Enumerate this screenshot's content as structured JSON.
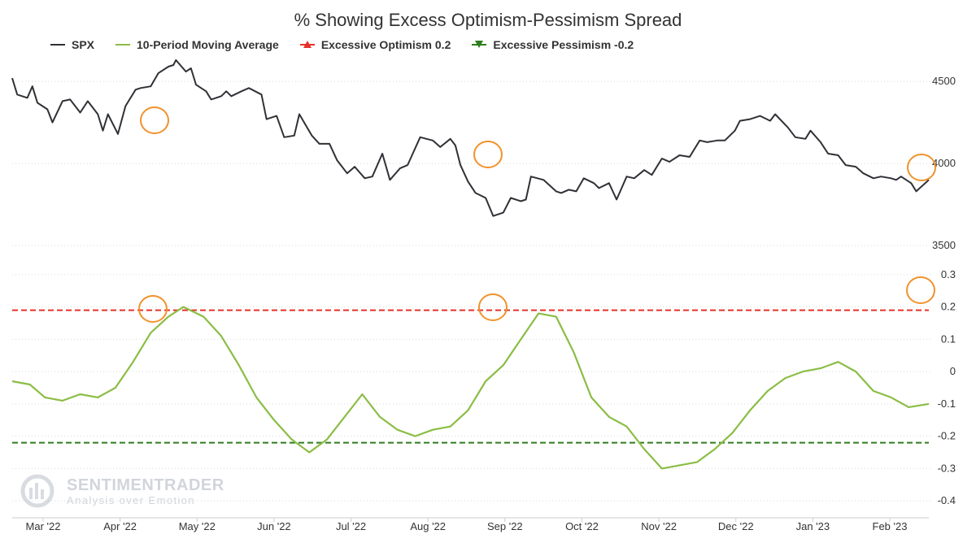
{
  "chart_data": {
    "type": "line",
    "title": "% Showing Excess Optimism-Pessimism Spread",
    "legend": [
      {
        "name": "SPX",
        "color": "#2f3136",
        "marker": "line"
      },
      {
        "name": "10-Period Moving Average",
        "color": "#8bbd45",
        "marker": "line"
      },
      {
        "name": "Excessive Optimism 0.2",
        "color": "#e6302a",
        "marker": "triangle-up"
      },
      {
        "name": "Excessive Pessimism -0.2",
        "color": "#2e7d1e",
        "marker": "triangle-down"
      }
    ],
    "legend_placement": "top-left",
    "x_labels": [
      "Mar '22",
      "Apr '22",
      "May '22",
      "Jun '22",
      "Jul '22",
      "Aug '22",
      "Sep '22",
      "Oct '22",
      "Nov '22",
      "Dec '22",
      "Jan '23",
      "Feb '23"
    ],
    "x_range": [
      "2022-02-22",
      "2023-02-21"
    ],
    "upper_panel": {
      "y_ticks": [
        4500,
        4000,
        3500
      ],
      "y_range": [
        3500,
        4600
      ],
      "series": [
        {
          "name": "SPX",
          "color": "#2f3136",
          "points": [
            [
              "2022-02-22",
              4520
            ],
            [
              "2022-02-24",
              4420
            ],
            [
              "2022-02-28",
              4400
            ],
            [
              "2022-03-02",
              4470
            ],
            [
              "2022-03-04",
              4370
            ],
            [
              "2022-03-08",
              4330
            ],
            [
              "2022-03-10",
              4250
            ],
            [
              "2022-03-14",
              4380
            ],
            [
              "2022-03-17",
              4390
            ],
            [
              "2022-03-21",
              4310
            ],
            [
              "2022-03-24",
              4380
            ],
            [
              "2022-03-28",
              4300
            ],
            [
              "2022-03-30",
              4200
            ],
            [
              "2022-04-01",
              4300
            ],
            [
              "2022-04-05",
              4180
            ],
            [
              "2022-04-08",
              4350
            ],
            [
              "2022-04-12",
              4450
            ],
            [
              "2022-04-14",
              4460
            ],
            [
              "2022-04-18",
              4470
            ],
            [
              "2022-04-21",
              4550
            ],
            [
              "2022-04-25",
              4590
            ],
            [
              "2022-04-27",
              4600
            ],
            [
              "2022-04-28",
              4630
            ],
            [
              "2022-05-02",
              4560
            ],
            [
              "2022-05-04",
              4580
            ],
            [
              "2022-05-06",
              4480
            ],
            [
              "2022-05-10",
              4440
            ],
            [
              "2022-05-12",
              4390
            ],
            [
              "2022-05-16",
              4410
            ],
            [
              "2022-05-18",
              4440
            ],
            [
              "2022-05-20",
              4410
            ],
            [
              "2022-05-24",
              4440
            ],
            [
              "2022-05-27",
              4460
            ],
            [
              "2022-06-01",
              4420
            ],
            [
              "2022-06-03",
              4270
            ],
            [
              "2022-06-07",
              4290
            ],
            [
              "2022-06-10",
              4160
            ],
            [
              "2022-06-14",
              4170
            ],
            [
              "2022-06-16",
              4300
            ],
            [
              "2022-06-21",
              4170
            ],
            [
              "2022-06-24",
              4120
            ],
            [
              "2022-06-28",
              4120
            ],
            [
              "2022-07-01",
              4020
            ],
            [
              "2022-07-05",
              3940
            ],
            [
              "2022-07-08",
              3980
            ],
            [
              "2022-07-12",
              3910
            ],
            [
              "2022-07-15",
              3920
            ],
            [
              "2022-07-19",
              4060
            ],
            [
              "2022-07-22",
              3900
            ],
            [
              "2022-07-26",
              3970
            ],
            [
              "2022-07-29",
              3990
            ],
            [
              "2022-08-03",
              4160
            ],
            [
              "2022-08-08",
              4140
            ],
            [
              "2022-08-11",
              4100
            ],
            [
              "2022-08-15",
              4150
            ],
            [
              "2022-08-17",
              4110
            ],
            [
              "2022-08-19",
              3990
            ],
            [
              "2022-08-22",
              3890
            ],
            [
              "2022-08-25",
              3820
            ],
            [
              "2022-08-29",
              3790
            ],
            [
              "2022-09-01",
              3680
            ],
            [
              "2022-09-05",
              3700
            ],
            [
              "2022-09-08",
              3790
            ],
            [
              "2022-09-12",
              3770
            ],
            [
              "2022-09-14",
              3780
            ],
            [
              "2022-09-16",
              3920
            ],
            [
              "2022-09-21",
              3900
            ],
            [
              "2022-09-26",
              3830
            ],
            [
              "2022-09-28",
              3820
            ],
            [
              "2022-10-01",
              3840
            ],
            [
              "2022-10-04",
              3830
            ],
            [
              "2022-10-07",
              3910
            ],
            [
              "2022-10-11",
              3880
            ],
            [
              "2022-10-13",
              3850
            ],
            [
              "2022-10-17",
              3880
            ],
            [
              "2022-10-20",
              3780
            ],
            [
              "2022-10-24",
              3920
            ],
            [
              "2022-10-27",
              3910
            ],
            [
              "2022-10-31",
              3960
            ],
            [
              "2022-11-03",
              3930
            ],
            [
              "2022-11-07",
              4030
            ],
            [
              "2022-11-10",
              4010
            ],
            [
              "2022-11-14",
              4050
            ],
            [
              "2022-11-18",
              4040
            ],
            [
              "2022-11-22",
              4140
            ],
            [
              "2022-11-25",
              4130
            ],
            [
              "2022-11-29",
              4140
            ],
            [
              "2022-12-02",
              4140
            ],
            [
              "2022-12-06",
              4200
            ],
            [
              "2022-12-08",
              4260
            ],
            [
              "2022-12-12",
              4270
            ],
            [
              "2022-12-14",
              4280
            ],
            [
              "2022-12-16",
              4290
            ],
            [
              "2022-12-20",
              4260
            ],
            [
              "2022-12-22",
              4300
            ],
            [
              "2022-12-27",
              4220
            ],
            [
              "2022-12-30",
              4160
            ],
            [
              "2023-01-03",
              4150
            ],
            [
              "2023-01-05",
              4200
            ],
            [
              "2023-01-09",
              4130
            ],
            [
              "2023-01-12",
              4060
            ],
            [
              "2023-01-16",
              4050
            ],
            [
              "2023-01-19",
              3990
            ],
            [
              "2023-01-23",
              3980
            ],
            [
              "2023-01-26",
              3940
            ],
            [
              "2023-01-30",
              3910
            ],
            [
              "2023-02-02",
              3920
            ],
            [
              "2023-02-06",
              3910
            ],
            [
              "2023-02-08",
              3900
            ],
            [
              "2023-02-10",
              3920
            ],
            [
              "2023-02-14",
              3880
            ],
            [
              "2023-02-16",
              3830
            ],
            [
              "2023-02-21",
              3900
            ]
          ]
        }
      ]
    },
    "lower_panel": {
      "y_ticks": [
        0.3,
        0.2,
        0.1,
        0,
        -0.1,
        -0.2,
        -0.3,
        -0.4
      ],
      "y_range": [
        -0.45,
        0.35
      ],
      "reference_lines": [
        {
          "name": "Excessive Optimism 0.2",
          "value": 0.19,
          "color": "#e6302a",
          "style": "dashed"
        },
        {
          "name": "Excessive Pessimism -0.2",
          "value": -0.22,
          "color": "#2e7d1e",
          "style": "dashed"
        }
      ],
      "series": [
        {
          "name": "10-Period Moving Average",
          "color": "#8bbd45",
          "points": [
            [
              "2022-02-22",
              -0.03
            ],
            [
              "2022-03-01",
              -0.04
            ],
            [
              "2022-03-07",
              -0.08
            ],
            [
              "2022-03-14",
              -0.09
            ],
            [
              "2022-03-21",
              -0.07
            ],
            [
              "2022-03-28",
              -0.08
            ],
            [
              "2022-04-04",
              -0.05
            ],
            [
              "2022-04-11",
              0.03
            ],
            [
              "2022-04-18",
              0.12
            ],
            [
              "2022-04-25",
              0.17
            ],
            [
              "2022-05-01",
              0.2
            ],
            [
              "2022-05-09",
              0.17
            ],
            [
              "2022-05-16",
              0.11
            ],
            [
              "2022-05-23",
              0.02
            ],
            [
              "2022-05-30",
              -0.08
            ],
            [
              "2022-06-06",
              -0.15
            ],
            [
              "2022-06-13",
              -0.21
            ],
            [
              "2022-06-20",
              -0.25
            ],
            [
              "2022-06-27",
              -0.21
            ],
            [
              "2022-07-04",
              -0.14
            ],
            [
              "2022-07-11",
              -0.07
            ],
            [
              "2022-07-18",
              -0.14
            ],
            [
              "2022-07-25",
              -0.18
            ],
            [
              "2022-08-01",
              -0.2
            ],
            [
              "2022-08-08",
              -0.18
            ],
            [
              "2022-08-15",
              -0.17
            ],
            [
              "2022-08-22",
              -0.12
            ],
            [
              "2022-08-29",
              -0.03
            ],
            [
              "2022-09-05",
              0.02
            ],
            [
              "2022-09-12",
              0.1
            ],
            [
              "2022-09-19",
              0.18
            ],
            [
              "2022-09-26",
              0.17
            ],
            [
              "2022-10-03",
              0.06
            ],
            [
              "2022-10-10",
              -0.08
            ],
            [
              "2022-10-17",
              -0.14
            ],
            [
              "2022-10-24",
              -0.17
            ],
            [
              "2022-10-31",
              -0.24
            ],
            [
              "2022-11-07",
              -0.3
            ],
            [
              "2022-11-14",
              -0.29
            ],
            [
              "2022-11-21",
              -0.28
            ],
            [
              "2022-11-28",
              -0.24
            ],
            [
              "2022-12-05",
              -0.19
            ],
            [
              "2022-12-12",
              -0.12
            ],
            [
              "2022-12-19",
              -0.06
            ],
            [
              "2022-12-26",
              -0.02
            ],
            [
              "2023-01-02",
              0.0
            ],
            [
              "2023-01-09",
              0.01
            ],
            [
              "2023-01-16",
              0.03
            ],
            [
              "2023-01-23",
              0.0
            ],
            [
              "2023-01-30",
              -0.06
            ],
            [
              "2023-02-06",
              -0.08
            ],
            [
              "2023-02-13",
              -0.11
            ],
            [
              "2023-02-21",
              -0.1
            ]
          ]
        }
      ]
    },
    "annotations": [
      "orange circle markers at optimism extremes"
    ]
  },
  "watermark": {
    "name": "SENTIMENTRADER",
    "tagline": "Analysis over Emotion"
  }
}
